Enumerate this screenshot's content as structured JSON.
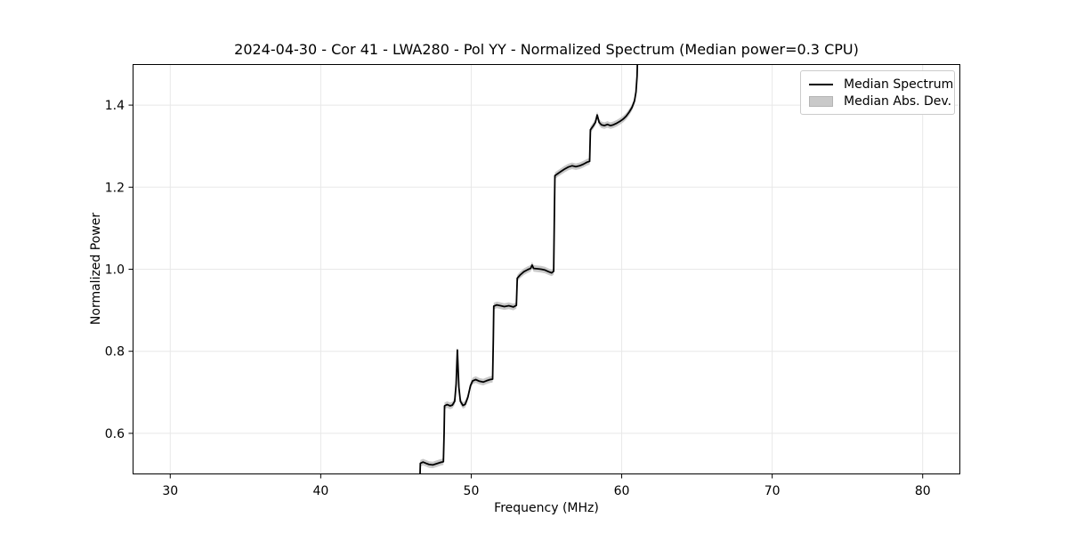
{
  "chart_data": {
    "type": "line",
    "title": "2024-04-30 - Cor 41 - LWA280 - Pol YY - Normalized Spectrum (Median power=0.3 CPU)",
    "xlabel": "Frequency (MHz)",
    "ylabel": "Normalized Power",
    "xlim": [
      27.5,
      82.5
    ],
    "ylim": [
      0.5,
      1.5
    ],
    "xticks": [
      30,
      40,
      50,
      60,
      70,
      80
    ],
    "yticks": [
      0.6,
      0.8,
      1.0,
      1.2,
      1.4
    ],
    "grid": true,
    "legend": {
      "position": "upper right",
      "entries": [
        {
          "label": "Median Spectrum",
          "type": "line",
          "color": "#000000"
        },
        {
          "label": "Median Abs. Dev.",
          "type": "patch",
          "color": "#c9c9c9"
        }
      ]
    },
    "band_halfwidth": 0.008,
    "series": [
      {
        "name": "Median Spectrum",
        "points": [
          [
            46.58,
            0.47
          ],
          [
            46.62,
            0.527
          ],
          [
            46.8,
            0.53
          ],
          [
            47.0,
            0.527
          ],
          [
            47.2,
            0.524
          ],
          [
            47.45,
            0.523
          ],
          [
            47.7,
            0.526
          ],
          [
            47.95,
            0.529
          ],
          [
            48.15,
            0.531
          ],
          [
            48.2,
            0.6
          ],
          [
            48.23,
            0.667
          ],
          [
            48.4,
            0.67
          ],
          [
            48.6,
            0.667
          ],
          [
            48.75,
            0.669
          ],
          [
            48.9,
            0.678
          ],
          [
            49.0,
            0.72
          ],
          [
            49.08,
            0.803
          ],
          [
            49.18,
            0.712
          ],
          [
            49.28,
            0.678
          ],
          [
            49.45,
            0.668
          ],
          [
            49.6,
            0.671
          ],
          [
            49.78,
            0.688
          ],
          [
            49.95,
            0.716
          ],
          [
            50.1,
            0.728
          ],
          [
            50.3,
            0.731
          ],
          [
            50.55,
            0.727
          ],
          [
            50.8,
            0.725
          ],
          [
            51.0,
            0.728
          ],
          [
            51.25,
            0.731
          ],
          [
            51.42,
            0.732
          ],
          [
            51.47,
            0.83
          ],
          [
            51.5,
            0.91
          ],
          [
            51.7,
            0.913
          ],
          [
            51.95,
            0.911
          ],
          [
            52.2,
            0.909
          ],
          [
            52.5,
            0.911
          ],
          [
            52.8,
            0.908
          ],
          [
            53.0,
            0.912
          ],
          [
            53.06,
            0.978
          ],
          [
            53.25,
            0.986
          ],
          [
            53.5,
            0.994
          ],
          [
            53.75,
            0.999
          ],
          [
            53.95,
            1.002
          ],
          [
            54.05,
            1.01
          ],
          [
            54.15,
            1.002
          ],
          [
            54.4,
            1.001
          ],
          [
            54.65,
            1.0
          ],
          [
            54.9,
            0.998
          ],
          [
            55.15,
            0.994
          ],
          [
            55.35,
            0.991
          ],
          [
            55.48,
            0.995
          ],
          [
            55.53,
            1.15
          ],
          [
            55.56,
            1.228
          ],
          [
            55.75,
            1.233
          ],
          [
            55.95,
            1.238
          ],
          [
            56.2,
            1.244
          ],
          [
            56.45,
            1.249
          ],
          [
            56.7,
            1.252
          ],
          [
            56.95,
            1.25
          ],
          [
            57.2,
            1.252
          ],
          [
            57.45,
            1.256
          ],
          [
            57.7,
            1.261
          ],
          [
            57.87,
            1.263
          ],
          [
            57.92,
            1.34
          ],
          [
            58.1,
            1.349
          ],
          [
            58.25,
            1.358
          ],
          [
            58.37,
            1.376
          ],
          [
            58.5,
            1.358
          ],
          [
            58.65,
            1.352
          ],
          [
            58.85,
            1.35
          ],
          [
            59.05,
            1.353
          ],
          [
            59.25,
            1.35
          ],
          [
            59.45,
            1.352
          ],
          [
            59.67,
            1.356
          ],
          [
            59.9,
            1.361
          ],
          [
            60.1,
            1.366
          ],
          [
            60.3,
            1.373
          ],
          [
            60.5,
            1.383
          ],
          [
            60.68,
            1.394
          ],
          [
            60.85,
            1.41
          ],
          [
            60.95,
            1.432
          ],
          [
            61.02,
            1.47
          ],
          [
            61.08,
            1.55
          ]
        ]
      }
    ],
    "colors": {
      "line": "#000000",
      "band": "#c9c9c9",
      "grid": "#e8e8e8",
      "spine": "#000000",
      "background": "#ffffff"
    }
  }
}
